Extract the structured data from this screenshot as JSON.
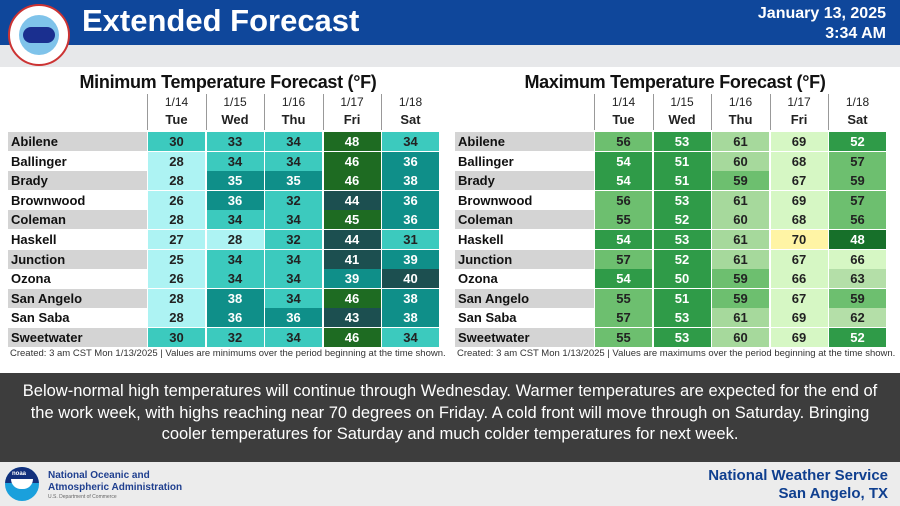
{
  "header": {
    "title": "Extended Forecast",
    "date": "January 13, 2025",
    "time": "3:34 AM",
    "logo_text": "NATIONAL WEATHER SERVICE"
  },
  "days": [
    {
      "date": "1/14",
      "day": "Tue"
    },
    {
      "date": "1/15",
      "day": "Wed"
    },
    {
      "date": "1/16",
      "day": "Thu"
    },
    {
      "date": "1/17",
      "day": "Fri"
    },
    {
      "date": "1/18",
      "day": "Sat"
    }
  ],
  "min_table": {
    "title": "Minimum Temperature Forecast (°F)",
    "note": "Created: 3 am CST Mon 1/13/2025  |  Values are minimums over the period beginning at the time shown.",
    "rows": [
      {
        "city": "Abilene",
        "values": [
          30,
          33,
          34,
          48,
          34
        ]
      },
      {
        "city": "Ballinger",
        "values": [
          28,
          34,
          34,
          46,
          36
        ]
      },
      {
        "city": "Brady",
        "values": [
          28,
          35,
          35,
          46,
          38
        ]
      },
      {
        "city": "Brownwood",
        "values": [
          26,
          36,
          32,
          44,
          36
        ]
      },
      {
        "city": "Coleman",
        "values": [
          28,
          34,
          34,
          45,
          36
        ]
      },
      {
        "city": "Haskell",
        "values": [
          27,
          28,
          32,
          44,
          31
        ]
      },
      {
        "city": "Junction",
        "values": [
          25,
          34,
          34,
          41,
          39
        ]
      },
      {
        "city": "Ozona",
        "values": [
          26,
          34,
          34,
          39,
          40
        ]
      },
      {
        "city": "San Angelo",
        "values": [
          28,
          38,
          34,
          46,
          38
        ]
      },
      {
        "city": "San Saba",
        "values": [
          28,
          36,
          36,
          43,
          38
        ]
      },
      {
        "city": "Sweetwater",
        "values": [
          30,
          32,
          34,
          46,
          34
        ]
      }
    ],
    "scale": [
      {
        "max": 29,
        "bg": "#adf3f3",
        "fg": "#222"
      },
      {
        "max": 34,
        "bg": "#3ccabe",
        "fg": "#222"
      },
      {
        "max": 39,
        "bg": "#0f8f89",
        "fg": "#fff"
      },
      {
        "max": 44,
        "bg": "#1c4f50",
        "fg": "#fff"
      },
      {
        "max": 99,
        "bg": "#1e6b22",
        "fg": "#fff"
      }
    ]
  },
  "max_table": {
    "title": "Maximum Temperature Forecast (°F)",
    "note": "Created: 3 am CST Mon 1/13/2025  |  Values are maximums over the period beginning at the time shown.",
    "rows": [
      {
        "city": "Abilene",
        "values": [
          56,
          53,
          61,
          69,
          52
        ]
      },
      {
        "city": "Ballinger",
        "values": [
          54,
          51,
          60,
          68,
          57
        ]
      },
      {
        "city": "Brady",
        "values": [
          54,
          51,
          59,
          67,
          59
        ]
      },
      {
        "city": "Brownwood",
        "values": [
          56,
          53,
          61,
          69,
          57
        ]
      },
      {
        "city": "Coleman",
        "values": [
          55,
          52,
          60,
          68,
          56
        ]
      },
      {
        "city": "Haskell",
        "values": [
          54,
          53,
          61,
          70,
          48
        ]
      },
      {
        "city": "Junction",
        "values": [
          57,
          52,
          61,
          67,
          66
        ]
      },
      {
        "city": "Ozona",
        "values": [
          54,
          50,
          59,
          66,
          63
        ]
      },
      {
        "city": "San Angelo",
        "values": [
          55,
          51,
          59,
          67,
          59
        ]
      },
      {
        "city": "San Saba",
        "values": [
          57,
          53,
          61,
          69,
          62
        ]
      },
      {
        "city": "Sweetwater",
        "values": [
          55,
          53,
          60,
          69,
          52
        ]
      }
    ],
    "scale": [
      {
        "max": 49,
        "bg": "#17702a",
        "fg": "#fff"
      },
      {
        "max": 54,
        "bg": "#2f9b48",
        "fg": "#fff"
      },
      {
        "max": 59,
        "bg": "#6dbf6f",
        "fg": "#222"
      },
      {
        "max": 61,
        "bg": "#a6d99c",
        "fg": "#222"
      },
      {
        "max": 63,
        "bg": "#b4dfa8",
        "fg": "#222"
      },
      {
        "max": 69,
        "bg": "#d6f7c4",
        "fg": "#222"
      },
      {
        "max": 99,
        "bg": "#fff4a5",
        "fg": "#222"
      }
    ]
  },
  "summary": "Below-normal high temperatures will continue through Wednesday. Warmer temperatures are expected for the end of the work week, with highs reaching near 70 degrees on Friday. A cold front will move through on Saturday. Bringing cooler temperatures for Saturday and much colder temperatures for next week.",
  "footer": {
    "noaa_logo": "noaa",
    "agency_line1": "National Oceanic and",
    "agency_line2": "Atmospheric Administration",
    "department": "U.S. Department of Commerce",
    "office_line1": "National Weather Service",
    "office_line2": "San Angelo, TX"
  }
}
